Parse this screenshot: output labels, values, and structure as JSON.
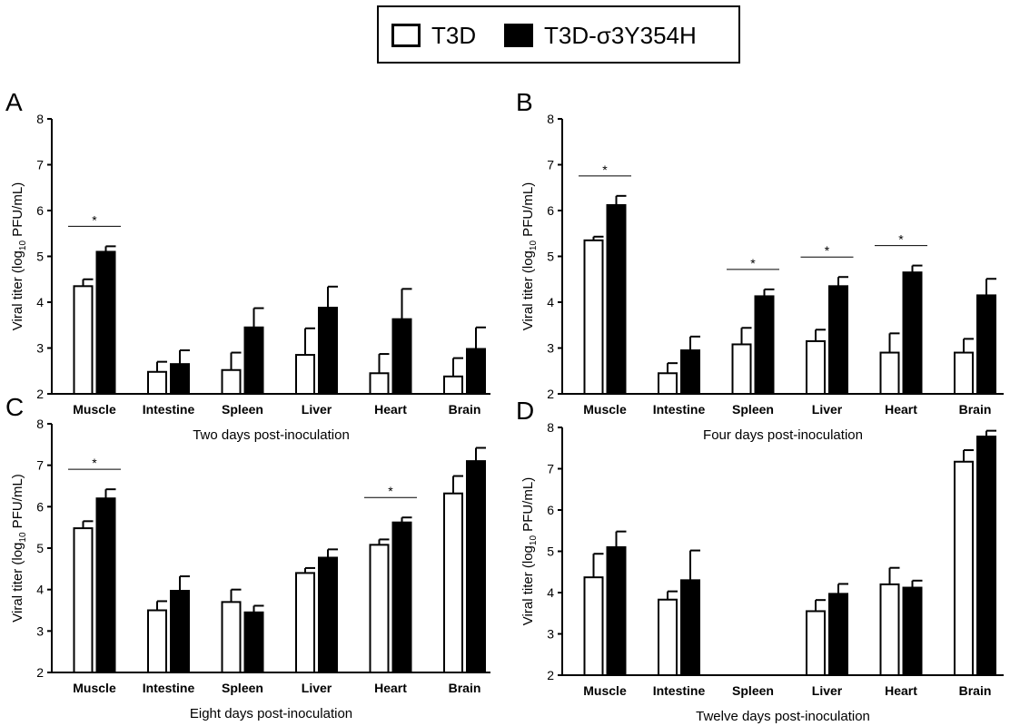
{
  "legend": {
    "items": [
      {
        "label": "T3D",
        "fill": "#ffffff"
      },
      {
        "label": "T3D-σ3Y354H",
        "fill": "#000000"
      }
    ],
    "placement": "top-center"
  },
  "colors": {
    "series_a": "#ffffff",
    "series_b": "#000000",
    "stroke": "#000000"
  },
  "chart_data": [
    {
      "type": "bar",
      "panel": "A",
      "xlabel": "Two days post-inoculation",
      "ylabel": "Viral titer (log10 PFU/mL)",
      "ylim": [
        2,
        8
      ],
      "yticks": [
        2,
        3,
        4,
        5,
        6,
        7,
        8
      ],
      "grid": false,
      "categories": [
        "Muscle",
        "Intestine",
        "Spleen",
        "Liver",
        "Heart",
        "Brain"
      ],
      "series": [
        {
          "name": "T3D",
          "values": [
            4.35,
            2.48,
            2.52,
            2.85,
            2.45,
            2.38
          ],
          "errors": [
            0.15,
            0.22,
            0.38,
            0.58,
            0.42,
            0.4
          ]
        },
        {
          "name": "T3D-σ3Y354H",
          "values": [
            5.1,
            2.65,
            3.45,
            3.88,
            3.63,
            2.98
          ],
          "errors": [
            0.12,
            0.3,
            0.42,
            0.46,
            0.66,
            0.47
          ]
        }
      ],
      "significance": [
        {
          "category": 0,
          "label": "*"
        }
      ]
    },
    {
      "type": "bar",
      "panel": "B",
      "xlabel": "Four days post-inoculation",
      "ylabel": "Viral titer (log10 PFU/mL)",
      "ylim": [
        2,
        8
      ],
      "yticks": [
        2,
        3,
        4,
        5,
        6,
        7,
        8
      ],
      "grid": false,
      "categories": [
        "Muscle",
        "Intestine",
        "Spleen",
        "Liver",
        "Heart",
        "Brain"
      ],
      "series": [
        {
          "name": "T3D",
          "values": [
            5.35,
            2.45,
            3.08,
            3.15,
            2.9,
            2.9
          ],
          "errors": [
            0.08,
            0.22,
            0.36,
            0.25,
            0.42,
            0.3
          ]
        },
        {
          "name": "T3D-σ3Y354H",
          "values": [
            6.12,
            2.95,
            4.13,
            4.35,
            4.65,
            4.15
          ],
          "errors": [
            0.2,
            0.3,
            0.15,
            0.2,
            0.15,
            0.36
          ]
        }
      ],
      "significance": [
        {
          "category": 0,
          "label": "*"
        },
        {
          "category": 2,
          "label": "*"
        },
        {
          "category": 3,
          "label": "*"
        },
        {
          "category": 4,
          "label": "*"
        }
      ]
    },
    {
      "type": "bar",
      "panel": "C",
      "xlabel": "Eight days post-inoculation",
      "ylabel": "Viral titer (log10 PFU/mL)",
      "ylim": [
        2,
        8
      ],
      "yticks": [
        2,
        3,
        4,
        5,
        6,
        7,
        8
      ],
      "grid": false,
      "categories": [
        "Muscle",
        "Intestine",
        "Spleen",
        "Liver",
        "Heart",
        "Brain"
      ],
      "series": [
        {
          "name": "T3D",
          "values": [
            5.48,
            3.5,
            3.7,
            4.4,
            5.08,
            6.32
          ],
          "errors": [
            0.17,
            0.22,
            0.3,
            0.12,
            0.13,
            0.42
          ]
        },
        {
          "name": "T3D-σ3Y354H",
          "values": [
            6.2,
            3.97,
            3.45,
            4.77,
            5.62,
            7.1
          ],
          "errors": [
            0.22,
            0.35,
            0.16,
            0.2,
            0.12,
            0.32
          ]
        }
      ],
      "significance": [
        {
          "category": 0,
          "label": "*"
        },
        {
          "category": 4,
          "label": "*"
        }
      ]
    },
    {
      "type": "bar",
      "panel": "D",
      "xlabel": "Twelve days post-inoculation",
      "ylabel": "Viral titer (log10 PFU/mL)",
      "ylim": [
        2,
        8
      ],
      "yticks": [
        2,
        3,
        4,
        5,
        6,
        7,
        8
      ],
      "grid": false,
      "categories": [
        "Muscle",
        "Intestine",
        "Spleen",
        "Liver",
        "Heart",
        "Brain"
      ],
      "series": [
        {
          "name": "T3D",
          "values": [
            4.37,
            3.83,
            null,
            3.55,
            4.2,
            7.17
          ],
          "errors": [
            0.57,
            0.2,
            null,
            0.27,
            0.4,
            0.28
          ]
        },
        {
          "name": "T3D-σ3Y354H",
          "values": [
            5.1,
            4.3,
            null,
            3.97,
            4.12,
            7.78
          ],
          "errors": [
            0.38,
            0.72,
            null,
            0.24,
            0.17,
            0.14
          ]
        }
      ],
      "significance": []
    }
  ]
}
